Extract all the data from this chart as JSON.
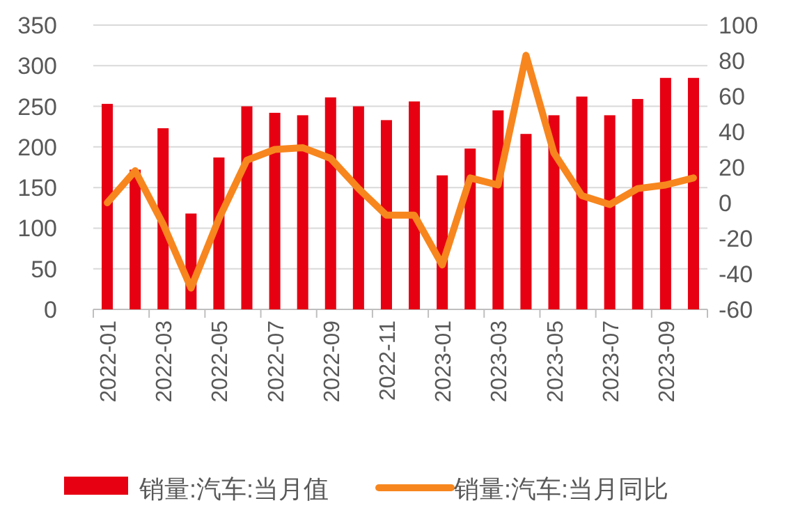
{
  "chart_data": {
    "type": "bar",
    "categories": [
      "2022-01",
      null,
      "2022-03",
      null,
      "2022-05",
      null,
      "2022-07",
      null,
      "2022-09",
      null,
      "2022-11",
      null,
      "2023-01",
      null,
      "2023-03",
      null,
      "2023-05",
      null,
      "2023-07",
      null,
      "2023-09",
      null
    ],
    "series": [
      {
        "name": "销量:汽车:当月值",
        "color": "#e60012",
        "values": [
          253,
          172,
          223,
          118,
          187,
          250,
          242,
          239,
          261,
          250,
          233,
          256,
          165,
          198,
          245,
          216,
          239,
          262,
          239,
          259,
          285,
          285
        ]
      },
      {
        "name": "销量:汽车:当月同比",
        "type": "line",
        "axis": "y2",
        "color": "#f7861e",
        "values": [
          0,
          18,
          -12,
          -48,
          -9,
          24,
          30,
          31,
          25,
          8,
          -7,
          -7,
          -35,
          14,
          10,
          83,
          28,
          4,
          -1,
          8,
          10,
          14
        ]
      }
    ],
    "ylim": [
      0,
      350
    ],
    "yticks": [
      0,
      50,
      100,
      150,
      200,
      250,
      300,
      350
    ],
    "y2lim": [
      -60,
      100
    ],
    "y2ticks": [
      -60,
      -40,
      -20,
      0,
      20,
      40,
      60,
      80,
      100
    ],
    "grid": "y",
    "legend": "bottom",
    "marker": "none",
    "line_style": "solid"
  }
}
